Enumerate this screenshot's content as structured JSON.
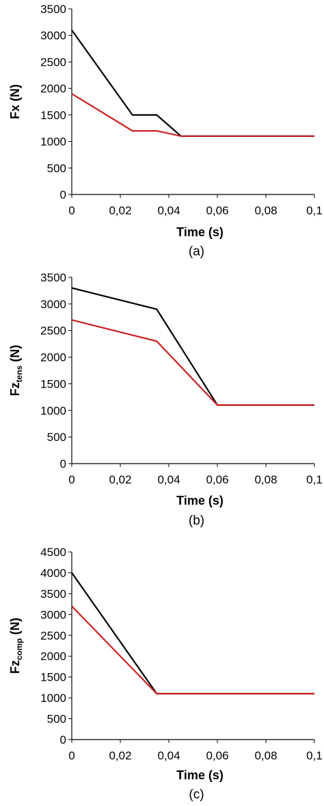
{
  "chart_data": [
    {
      "type": "line",
      "caption": "(a)",
      "xlabel": "Time (s)",
      "ylabel": "Fx (N)",
      "ylabel_sub": "",
      "xlim": [
        0,
        0.1
      ],
      "ylim": [
        0,
        3500
      ],
      "xticks": [
        0,
        0.02,
        0.04,
        0.06,
        0.08,
        0.1
      ],
      "xtick_labels": [
        "0",
        "0,02",
        "0,04",
        "0,06",
        "0,08",
        "0,1"
      ],
      "yticks": [
        0,
        500,
        1000,
        1500,
        2000,
        2500,
        3000,
        3500
      ],
      "ytick_labels": [
        "0",
        "500",
        "1000",
        "1500",
        "2000",
        "2500",
        "3000",
        "3500"
      ],
      "grid": false,
      "series": [
        {
          "color": "#000000",
          "points": [
            [
              0,
              3100
            ],
            [
              0.025,
              1500
            ],
            [
              0.035,
              1500
            ],
            [
              0.045,
              1100
            ],
            [
              0.1,
              1100
            ]
          ]
        },
        {
          "color": "#cc1f1f",
          "points": [
            [
              0,
              1900
            ],
            [
              0.025,
              1200
            ],
            [
              0.035,
              1200
            ],
            [
              0.045,
              1100
            ],
            [
              0.1,
              1100
            ]
          ]
        }
      ]
    },
    {
      "type": "line",
      "caption": "(b)",
      "xlabel": "Time (s)",
      "ylabel": "Fz",
      "ylabel_sub": "tens",
      "ylabel_unit": " (N)",
      "xlim": [
        0,
        0.1
      ],
      "ylim": [
        0,
        3500
      ],
      "xticks": [
        0,
        0.02,
        0.04,
        0.06,
        0.08,
        0.1
      ],
      "xtick_labels": [
        "0",
        "0,02",
        "0,04",
        "0,06",
        "0,08",
        "0,1"
      ],
      "yticks": [
        0,
        500,
        1000,
        1500,
        2000,
        2500,
        3000,
        3500
      ],
      "ytick_labels": [
        "0",
        "500",
        "1000",
        "1500",
        "2000",
        "2500",
        "3000",
        "3500"
      ],
      "grid": false,
      "series": [
        {
          "color": "#000000",
          "points": [
            [
              0,
              3300
            ],
            [
              0.035,
              2900
            ],
            [
              0.06,
              1100
            ],
            [
              0.1,
              1100
            ]
          ]
        },
        {
          "color": "#cc1f1f",
          "points": [
            [
              0,
              2700
            ],
            [
              0.035,
              2300
            ],
            [
              0.06,
              1100
            ],
            [
              0.1,
              1100
            ]
          ]
        }
      ]
    },
    {
      "type": "line",
      "caption": "(c)",
      "xlabel": "Time (s)",
      "ylabel": "Fz",
      "ylabel_sub": "comp",
      "ylabel_unit": " (N)",
      "xlim": [
        0,
        0.1
      ],
      "ylim": [
        0,
        4500
      ],
      "xticks": [
        0,
        0.02,
        0.04,
        0.06,
        0.08,
        0.1
      ],
      "xtick_labels": [
        "0",
        "0,02",
        "0,04",
        "0,06",
        "0,08",
        "0,1"
      ],
      "yticks": [
        0,
        500,
        1000,
        1500,
        2000,
        2500,
        3000,
        3500,
        4000,
        4500
      ],
      "ytick_labels": [
        "0",
        "500",
        "1000",
        "1500",
        "2000",
        "2500",
        "3000",
        "3500",
        "4000",
        "4500"
      ],
      "grid": false,
      "series": [
        {
          "color": "#000000",
          "points": [
            [
              0,
              4000
            ],
            [
              0.035,
              1100
            ],
            [
              0.1,
              1100
            ]
          ]
        },
        {
          "color": "#cc1f1f",
          "points": [
            [
              0,
              3200
            ],
            [
              0.035,
              1100
            ],
            [
              0.1,
              1100
            ]
          ]
        }
      ]
    }
  ]
}
